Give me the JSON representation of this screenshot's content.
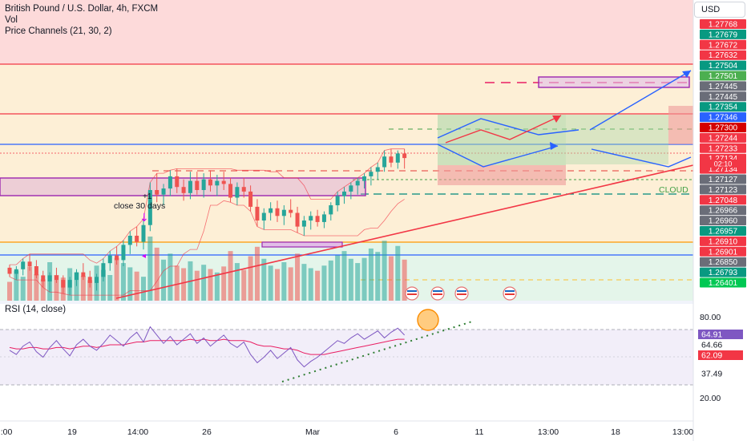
{
  "legend": {
    "title": "British Pound / U.S. Dollar, 4h, FXCM",
    "vol": "Vol",
    "channels": "Price Channels (21, 30, 2)"
  },
  "currency": "USD",
  "rsi_title": "RSI (14, close)",
  "annotations": {
    "close30": "close 30 days",
    "plus1": "+1",
    "cloud": "CLOUD",
    "countdown": "02:10"
  },
  "colors": {
    "up": "#26a69a",
    "down": "#ef5350",
    "blue_line": "#2962ff",
    "red_line": "#f23645",
    "orange_line": "#ff9800",
    "purple": "#9c27b0",
    "rsi": "#7e57c2",
    "rsi_ma": "#e91e63"
  },
  "chart_data": [
    {
      "type": "candlestick",
      "title": "British Pound / U.S. Dollar, 4h, FXCM",
      "x_ticks": [
        ":00",
        "19",
        "14:00",
        "26",
        "Mar",
        "6",
        "11",
        "13:00",
        "18",
        "13:00"
      ],
      "price_labels": [
        {
          "value": "1.27768",
          "color": "#f23645"
        },
        {
          "value": "1.27679",
          "color": "#089981"
        },
        {
          "value": "1.27672",
          "color": "#f23645"
        },
        {
          "value": "1.27632",
          "color": "#f23645"
        },
        {
          "value": "1.27504",
          "color": "#089981"
        },
        {
          "value": "1.27501",
          "color": "#4caf50"
        },
        {
          "value": "1.27445",
          "color": "#6a6d78"
        },
        {
          "value": "1.27445",
          "color": "#6a6d78"
        },
        {
          "value": "1.27354",
          "color": "#089981"
        },
        {
          "value": "1.27346",
          "color": "#2962ff"
        },
        {
          "value": "1.27300",
          "color": "#d50000"
        },
        {
          "value": "1.27244",
          "color": "#f23645"
        },
        {
          "value": "1.27233",
          "color": "#f23645"
        },
        {
          "value": "1.27134",
          "color": "#f23645"
        },
        {
          "value": "1.27134",
          "color": "#f23645"
        },
        {
          "value": "1.27127",
          "color": "#6a6d78"
        },
        {
          "value": "1.27123",
          "color": "#6a6d78"
        },
        {
          "value": "1.27048",
          "color": "#f23645"
        },
        {
          "value": "1.26966",
          "color": "#6a6d78"
        },
        {
          "value": "1.26960",
          "color": "#6a6d78"
        },
        {
          "value": "1.26957",
          "color": "#089981"
        },
        {
          "value": "1.26910",
          "color": "#f23645"
        },
        {
          "value": "1.26901",
          "color": "#f23645"
        },
        {
          "value": "1.26850",
          "color": "#6a6d78"
        },
        {
          "value": "1.26793",
          "color": "#089981"
        },
        {
          "value": "1.26401",
          "color": "#00c853"
        }
      ],
      "candles": [
        [
          1.2649,
          1.2651,
          1.2643,
          1.2645
        ],
        [
          1.2645,
          1.265,
          1.2641,
          1.2648
        ],
        [
          1.2648,
          1.2655,
          1.2644,
          1.2653
        ],
        [
          1.2653,
          1.2658,
          1.2647,
          1.265
        ],
        [
          1.265,
          1.2654,
          1.2642,
          1.2644
        ],
        [
          1.2644,
          1.2647,
          1.2636,
          1.264
        ],
        [
          1.264,
          1.2646,
          1.2633,
          1.2644
        ],
        [
          1.2644,
          1.2649,
          1.2639,
          1.2641
        ],
        [
          1.2641,
          1.2644,
          1.2632,
          1.2636
        ],
        [
          1.2636,
          1.2643,
          1.2631,
          1.2641
        ],
        [
          1.2641,
          1.2648,
          1.2637,
          1.2646
        ],
        [
          1.2646,
          1.2652,
          1.2641,
          1.2643
        ],
        [
          1.2643,
          1.2647,
          1.2636,
          1.2639
        ],
        [
          1.2639,
          1.2645,
          1.2634,
          1.2643
        ],
        [
          1.2643,
          1.2655,
          1.264,
          1.2652
        ],
        [
          1.2652,
          1.266,
          1.2647,
          1.2657
        ],
        [
          1.2657,
          1.2663,
          1.2651,
          1.2654
        ],
        [
          1.2654,
          1.2667,
          1.265,
          1.2664
        ],
        [
          1.2664,
          1.2673,
          1.2658,
          1.267
        ],
        [
          1.267,
          1.2676,
          1.2663,
          1.2666
        ],
        [
          1.2666,
          1.2681,
          1.2661,
          1.2677
        ],
        [
          1.2677,
          1.2705,
          1.2673,
          1.27
        ],
        [
          1.27,
          1.2711,
          1.2692,
          1.2697
        ],
        [
          1.2697,
          1.2704,
          1.269,
          1.2701
        ],
        [
          1.2701,
          1.2713,
          1.2696,
          1.2709
        ],
        [
          1.2709,
          1.2714,
          1.2698,
          1.2702
        ],
        [
          1.2702,
          1.2707,
          1.2693,
          1.2698
        ],
        [
          1.2698,
          1.2712,
          1.2694,
          1.2706
        ],
        [
          1.2706,
          1.2712,
          1.2697,
          1.27
        ],
        [
          1.27,
          1.2711,
          1.2695,
          1.2707
        ],
        [
          1.2707,
          1.2713,
          1.2699,
          1.2703
        ],
        [
          1.2703,
          1.271,
          1.2696,
          1.2706
        ],
        [
          1.2706,
          1.2712,
          1.27,
          1.2704
        ],
        [
          1.2704,
          1.2708,
          1.2692,
          1.2695
        ],
        [
          1.2695,
          1.2705,
          1.269,
          1.2702
        ],
        [
          1.2702,
          1.2708,
          1.2695,
          1.2699
        ],
        [
          1.2699,
          1.2703,
          1.2686,
          1.2689
        ],
        [
          1.2689,
          1.2694,
          1.2676,
          1.268
        ],
        [
          1.268,
          1.2688,
          1.2674,
          1.2685
        ],
        [
          1.2685,
          1.2692,
          1.268,
          1.2688
        ],
        [
          1.2688,
          1.2693,
          1.2679,
          1.2683
        ],
        [
          1.2683,
          1.269,
          1.2677,
          1.2687
        ],
        [
          1.2687,
          1.2694,
          1.2682,
          1.2685
        ],
        [
          1.2685,
          1.2689,
          1.2672,
          1.2676
        ],
        [
          1.2676,
          1.2683,
          1.267,
          1.268
        ],
        [
          1.268,
          1.2686,
          1.2674,
          1.2683
        ],
        [
          1.2683,
          1.2687,
          1.2676,
          1.2679
        ],
        [
          1.2679,
          1.2686,
          1.2675,
          1.2684
        ],
        [
          1.2684,
          1.2692,
          1.268,
          1.269
        ],
        [
          1.269,
          1.2699,
          1.2686,
          1.2696
        ],
        [
          1.2696,
          1.2702,
          1.2691,
          1.2699
        ],
        [
          1.2699,
          1.2705,
          1.2694,
          1.2703
        ],
        [
          1.2703,
          1.2708,
          1.2697,
          1.2706
        ],
        [
          1.2706,
          1.2711,
          1.2701,
          1.2709
        ],
        [
          1.2709,
          1.2715,
          1.2703,
          1.2712
        ],
        [
          1.2712,
          1.2718,
          1.2707,
          1.2715
        ],
        [
          1.2715,
          1.2726,
          1.2712,
          1.2722
        ],
        [
          1.2722,
          1.2727,
          1.2715,
          1.2718
        ],
        [
          1.2718,
          1.2726,
          1.2714,
          1.2724
        ],
        [
          1.2724,
          1.2727,
          1.2714,
          1.2721
        ]
      ],
      "volume": [
        22,
        35,
        28,
        40,
        31,
        25,
        45,
        30,
        27,
        38,
        33,
        29,
        24,
        41,
        36,
        30,
        50,
        44,
        39,
        34,
        28,
        75,
        62,
        48,
        55,
        41,
        38,
        46,
        35,
        42,
        37,
        33,
        40,
        58,
        44,
        36,
        52,
        63,
        49,
        41,
        37,
        45,
        39,
        55,
        43,
        38,
        35,
        41,
        47,
        53,
        58,
        49,
        44,
        50,
        61,
        57,
        70,
        52,
        64,
        48
      ]
    },
    {
      "type": "line",
      "title": "RSI (14, close)",
      "y_ticks": [
        "80.00",
        "20.00"
      ],
      "levels": [
        {
          "value": "64.91",
          "color": "#7e57c2"
        },
        {
          "value": "64.66",
          "color": "none"
        },
        {
          "value": "62.09",
          "color": "#f23645"
        },
        {
          "value": "37.49",
          "color": "none"
        }
      ],
      "series": [
        {
          "values": [
            55,
            52,
            58,
            61,
            54,
            50,
            57,
            62,
            56,
            51,
            59,
            63,
            58,
            55,
            60,
            66,
            62,
            58,
            64,
            68,
            61,
            72,
            66,
            60,
            65,
            59,
            63,
            67,
            60,
            64,
            58,
            62,
            66,
            60,
            57,
            61,
            52,
            46,
            50,
            55,
            49,
            53,
            57,
            48,
            43,
            47,
            50,
            54,
            58,
            62,
            60,
            64,
            67,
            63,
            66,
            69,
            64,
            68,
            71,
            66
          ]
        },
        {
          "values": [
            57,
            56,
            56,
            57,
            57,
            56,
            56,
            57,
            57,
            56,
            57,
            58,
            58,
            57,
            58,
            59,
            59,
            59,
            60,
            61,
            61,
            62,
            62,
            62,
            62,
            62,
            62,
            63,
            62,
            63,
            62,
            62,
            63,
            62,
            62,
            62,
            61,
            59,
            58,
            58,
            57,
            56,
            56,
            55,
            53,
            52,
            52,
            52,
            53,
            54,
            55,
            56,
            57,
            58,
            59,
            60,
            61,
            62,
            63,
            63
          ]
        }
      ]
    }
  ]
}
